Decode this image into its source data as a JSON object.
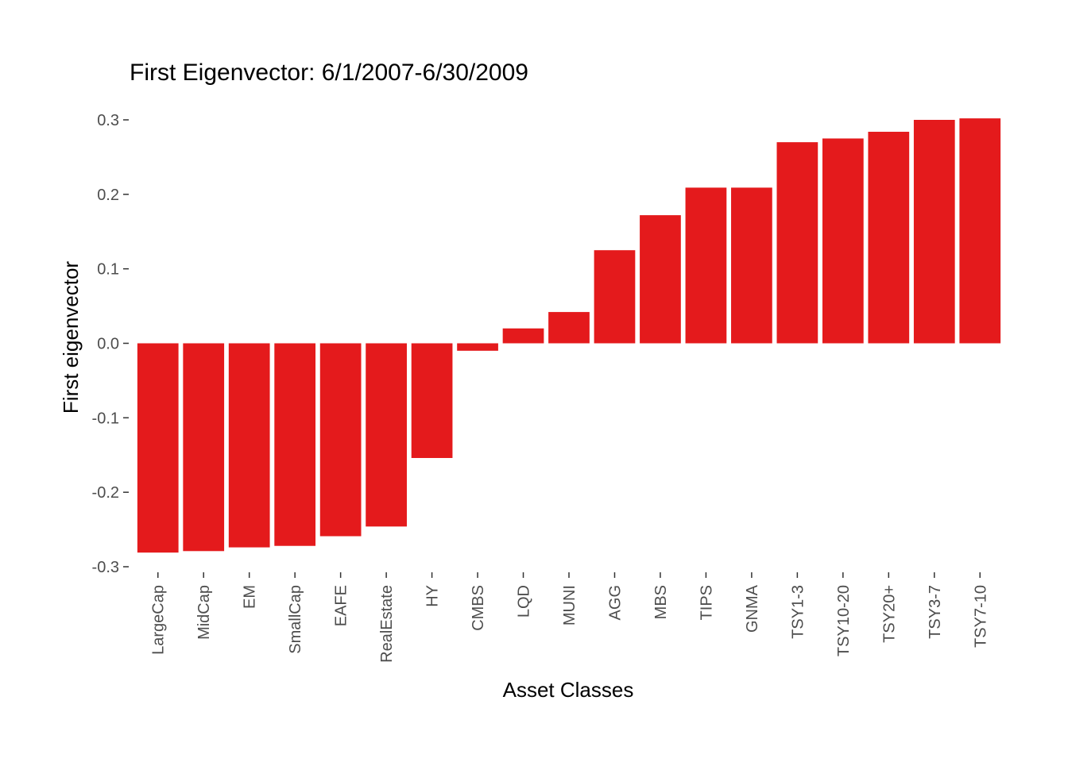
{
  "chart_data": {
    "type": "bar",
    "title": "First Eigenvector: 6/1/2007-6/30/2009",
    "xlabel": "Asset Classes",
    "ylabel": "First eigenvector",
    "categories": [
      "LargeCap",
      "MidCap",
      "EM",
      "SmallCap",
      "EAFE",
      "RealEstate",
      "HY",
      "CMBS",
      "LQD",
      "MUNI",
      "AGG",
      "MBS",
      "TIPS",
      "GNMA",
      "TSY1-3",
      "TSY10-20",
      "TSY20+",
      "TSY3-7",
      "TSY7-10"
    ],
    "values": [
      -0.281,
      -0.279,
      -0.274,
      -0.272,
      -0.259,
      -0.246,
      -0.154,
      -0.01,
      0.02,
      0.042,
      0.125,
      0.172,
      0.209,
      0.209,
      0.27,
      0.275,
      0.284,
      0.3,
      0.302
    ],
    "ylim": [
      -0.3,
      0.3
    ],
    "yticks": [
      -0.3,
      -0.2,
      -0.1,
      0.0,
      0.1,
      0.2,
      0.3
    ],
    "ytick_labels": [
      "-0.3",
      "-0.2",
      "-0.1",
      "0.0",
      "0.1",
      "0.2",
      "0.3"
    ],
    "bar_color": "#e41a1c",
    "grid": false,
    "legend": "none"
  }
}
